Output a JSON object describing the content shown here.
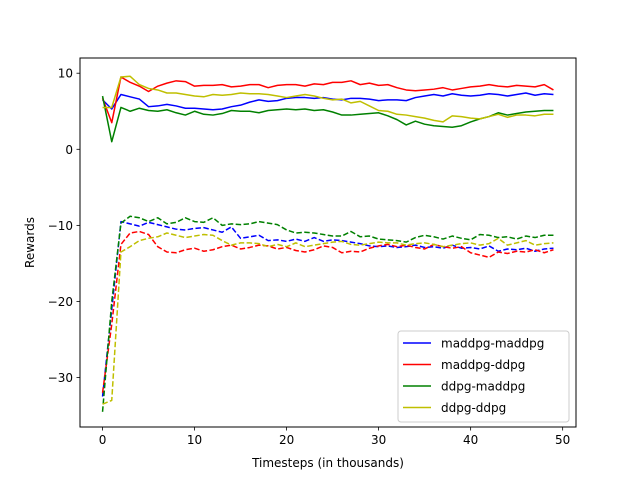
{
  "chart_data": {
    "type": "line",
    "xlabel": "Timesteps (in thousands)",
    "ylabel": "Rewards",
    "xlim": [
      -2.45,
      51.45
    ],
    "ylim": [
      -36.5,
      12.0
    ],
    "xticks": [
      0,
      10,
      20,
      30,
      40,
      50
    ],
    "yticks": [
      -30,
      -20,
      -10,
      0,
      10
    ],
    "ytick_labels": [
      "−30",
      "−20",
      "−10",
      "0",
      "10"
    ],
    "grid": false,
    "legend_position": "lower right",
    "x": [
      0,
      1,
      2,
      3,
      4,
      5,
      6,
      7,
      8,
      9,
      10,
      11,
      12,
      13,
      14,
      15,
      16,
      17,
      18,
      19,
      20,
      21,
      22,
      23,
      24,
      25,
      26,
      27,
      28,
      29,
      30,
      31,
      32,
      33,
      34,
      35,
      36,
      37,
      38,
      39,
      40,
      41,
      42,
      43,
      44,
      45,
      46,
      47,
      48,
      49
    ],
    "series": [
      {
        "name": "maddpg-maddpg",
        "color": "#0000ff",
        "linestyle": "solid",
        "values": [
          6.5,
          5.3,
          7.2,
          6.9,
          6.6,
          5.6,
          5.7,
          5.9,
          5.7,
          5.4,
          5.4,
          5.3,
          5.2,
          5.3,
          5.6,
          5.8,
          6.2,
          6.5,
          6.3,
          6.4,
          6.7,
          6.8,
          6.8,
          6.7,
          6.8,
          6.6,
          6.5,
          6.7,
          6.7,
          6.6,
          6.4,
          6.5,
          6.5,
          6.4,
          6.8,
          7.0,
          7.2,
          7.0,
          7.3,
          7.1,
          7.0,
          7.1,
          7.3,
          7.2,
          7.0,
          7.2,
          7.4,
          7.1,
          7.3,
          7.2
        ]
      },
      {
        "name": "maddpg-ddpg",
        "color": "#ff0000",
        "linestyle": "solid",
        "values": [
          6.7,
          3.5,
          9.5,
          8.8,
          8.3,
          7.6,
          8.3,
          8.7,
          9.0,
          8.9,
          8.3,
          8.4,
          8.4,
          8.5,
          8.2,
          8.3,
          8.5,
          8.5,
          8.1,
          8.4,
          8.5,
          8.5,
          8.3,
          8.6,
          8.5,
          8.8,
          8.8,
          9.0,
          8.5,
          8.7,
          8.4,
          8.5,
          8.1,
          7.8,
          7.7,
          7.8,
          7.9,
          8.1,
          7.8,
          8.0,
          8.2,
          8.3,
          8.5,
          8.3,
          8.2,
          8.4,
          8.3,
          8.2,
          8.5,
          7.8
        ]
      },
      {
        "name": "ddpg-maddpg",
        "color": "#008000",
        "linestyle": "solid",
        "values": [
          7.0,
          1.0,
          5.5,
          5.0,
          5.4,
          5.1,
          5.0,
          5.2,
          4.8,
          4.5,
          5.0,
          4.6,
          4.5,
          4.7,
          5.1,
          5.0,
          5.0,
          4.8,
          5.1,
          5.2,
          5.3,
          5.2,
          5.3,
          5.1,
          5.2,
          4.9,
          4.5,
          4.5,
          4.6,
          4.7,
          4.8,
          4.4,
          3.9,
          3.2,
          3.7,
          3.3,
          3.1,
          3.0,
          2.9,
          3.1,
          3.6,
          4.0,
          4.3,
          4.8,
          4.5,
          4.7,
          4.9,
          5.0,
          5.1,
          5.1
        ]
      },
      {
        "name": "ddpg-ddpg",
        "color": "#bfbf00",
        "linestyle": "solid",
        "values": [
          5.5,
          5.5,
          9.5,
          9.6,
          8.5,
          8.0,
          7.8,
          7.4,
          7.4,
          7.2,
          7.0,
          6.9,
          7.2,
          7.1,
          7.2,
          7.4,
          7.3,
          7.3,
          7.2,
          7.0,
          6.8,
          7.0,
          7.2,
          7.0,
          6.7,
          6.5,
          6.6,
          6.1,
          6.3,
          5.7,
          5.1,
          5.0,
          4.6,
          4.5,
          4.3,
          4.1,
          3.8,
          3.6,
          4.4,
          4.3,
          4.1,
          4.0,
          4.3,
          4.6,
          4.2,
          4.5,
          4.5,
          4.4,
          4.6,
          4.6
        ]
      },
      {
        "name": "",
        "color": "#0000ff",
        "linestyle": "dashed",
        "values": [
          -32.5,
          -21.0,
          -9.5,
          -9.8,
          -10.1,
          -9.6,
          -9.9,
          -10.2,
          -10.5,
          -10.6,
          -10.4,
          -10.3,
          -10.6,
          -10.9,
          -10.2,
          -11.7,
          -11.5,
          -11.3,
          -12.0,
          -11.9,
          -12.1,
          -11.8,
          -12.1,
          -11.6,
          -12.1,
          -11.9,
          -12.0,
          -12.2,
          -12.4,
          -12.7,
          -12.8,
          -12.7,
          -12.9,
          -12.8,
          -12.6,
          -12.9,
          -12.8,
          -13.0,
          -12.6,
          -13.0,
          -12.9,
          -13.1,
          -12.7,
          -13.4,
          -13.1,
          -13.2,
          -13.0,
          -13.4,
          -13.1,
          -13.0
        ]
      },
      {
        "name": "",
        "color": "#ff0000",
        "linestyle": "dashed",
        "values": [
          -32.0,
          -23.0,
          -12.5,
          -11.0,
          -10.8,
          -11.2,
          -12.8,
          -13.5,
          -13.6,
          -13.2,
          -13.0,
          -13.4,
          -13.2,
          -12.8,
          -12.6,
          -13.1,
          -12.9,
          -12.6,
          -12.7,
          -13.1,
          -12.9,
          -13.3,
          -13.5,
          -13.2,
          -12.7,
          -12.9,
          -13.6,
          -13.4,
          -13.5,
          -13.0,
          -12.7,
          -12.5,
          -12.8,
          -12.6,
          -12.9,
          -13.1,
          -12.5,
          -12.8,
          -13.0,
          -12.8,
          -13.6,
          -13.9,
          -14.2,
          -13.5,
          -13.7,
          -13.4,
          -13.5,
          -13.2,
          -13.6,
          -13.2
        ]
      },
      {
        "name": "",
        "color": "#008000",
        "linestyle": "dashed",
        "values": [
          -34.5,
          -20.0,
          -9.7,
          -8.8,
          -9.0,
          -9.5,
          -9.0,
          -9.8,
          -9.6,
          -9.0,
          -9.5,
          -9.6,
          -9.0,
          -10.0,
          -9.8,
          -9.9,
          -9.8,
          -9.5,
          -9.7,
          -9.9,
          -10.6,
          -11.0,
          -10.9,
          -11.0,
          -11.2,
          -11.4,
          -11.4,
          -10.8,
          -11.5,
          -11.4,
          -11.8,
          -11.9,
          -12.0,
          -12.2,
          -11.6,
          -11.3,
          -11.5,
          -11.8,
          -11.4,
          -11.7,
          -11.9,
          -11.2,
          -11.3,
          -11.6,
          -11.5,
          -11.8,
          -11.4,
          -11.6,
          -11.3,
          -11.3
        ]
      },
      {
        "name": "",
        "color": "#bfbf00",
        "linestyle": "dashed",
        "values": [
          -33.5,
          -33.0,
          -13.5,
          -12.8,
          -12.0,
          -11.7,
          -11.5,
          -11.0,
          -11.3,
          -11.6,
          -11.4,
          -11.2,
          -11.3,
          -12.0,
          -12.6,
          -12.3,
          -12.3,
          -12.4,
          -12.8,
          -12.5,
          -12.8,
          -12.3,
          -12.8,
          -12.6,
          -12.4,
          -12.2,
          -12.1,
          -12.5,
          -12.6,
          -12.4,
          -12.2,
          -12.3,
          -12.3,
          -12.6,
          -12.4,
          -12.3,
          -12.5,
          -12.8,
          -12.6,
          -12.4,
          -12.3,
          -12.6,
          -12.4,
          -11.7,
          -12.6,
          -12.3,
          -12.0,
          -12.6,
          -12.4,
          -12.3
        ]
      }
    ]
  }
}
